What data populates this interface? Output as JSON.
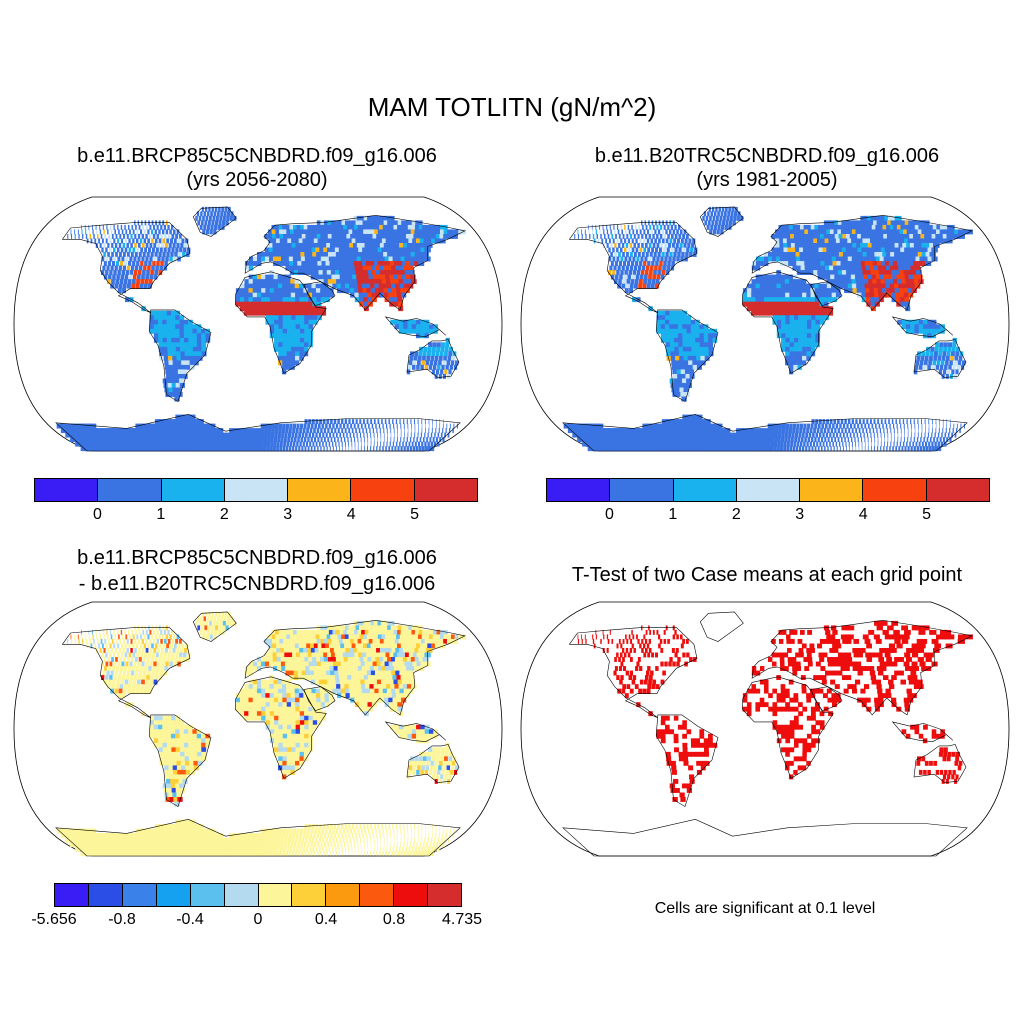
{
  "title": "MAM TOTLITN (gN/m^2)",
  "panels": {
    "future": {
      "case": "b.e11.BRCP85C5CNBDRD.f09_g16.006",
      "years": "(yrs 2056-2080)"
    },
    "historical": {
      "case": "b.e11.B20TRC5CNBDRD.f09_g16.006",
      "years": "(yrs 1981-2005)"
    },
    "difference": {
      "line1": "b.e11.BRCP85C5CNBDRD.f09_g16.006",
      "line2": "- b.e11.B20TRC5CNBDRD.f09_g16.006"
    },
    "ttest": {
      "title": "T-Test of two Case means at each grid point",
      "note": "Cells are significant at 0.1 level"
    }
  },
  "colorbars": {
    "absolute": {
      "colors": [
        "#3a1cf5",
        "#3a74e2",
        "#1ab2ee",
        "#c8e4f5",
        "#fbb41a",
        "#f7410e",
        "#d52d2d"
      ],
      "labels": [
        "0",
        "1",
        "2",
        "3",
        "4",
        "5"
      ]
    },
    "difference": {
      "colors": [
        "#3a1cf5",
        "#2b4ee6",
        "#3a82ea",
        "#16a0f0",
        "#5bc0ee",
        "#b4daf0",
        "#fdf59a",
        "#fdcf38",
        "#fb9a0e",
        "#fb5a0e",
        "#ee0d0d",
        "#d52d2d"
      ],
      "labels": [
        "-5.656",
        "-0.8",
        "-0.4",
        "0",
        "0.4",
        "0.8",
        "4.735"
      ]
    }
  },
  "map_colors": {
    "land_base_abs": "#3a74e2",
    "land_base_diff": "#fdf59a",
    "significant": "#ee0d0d",
    "outline": "#000000"
  }
}
